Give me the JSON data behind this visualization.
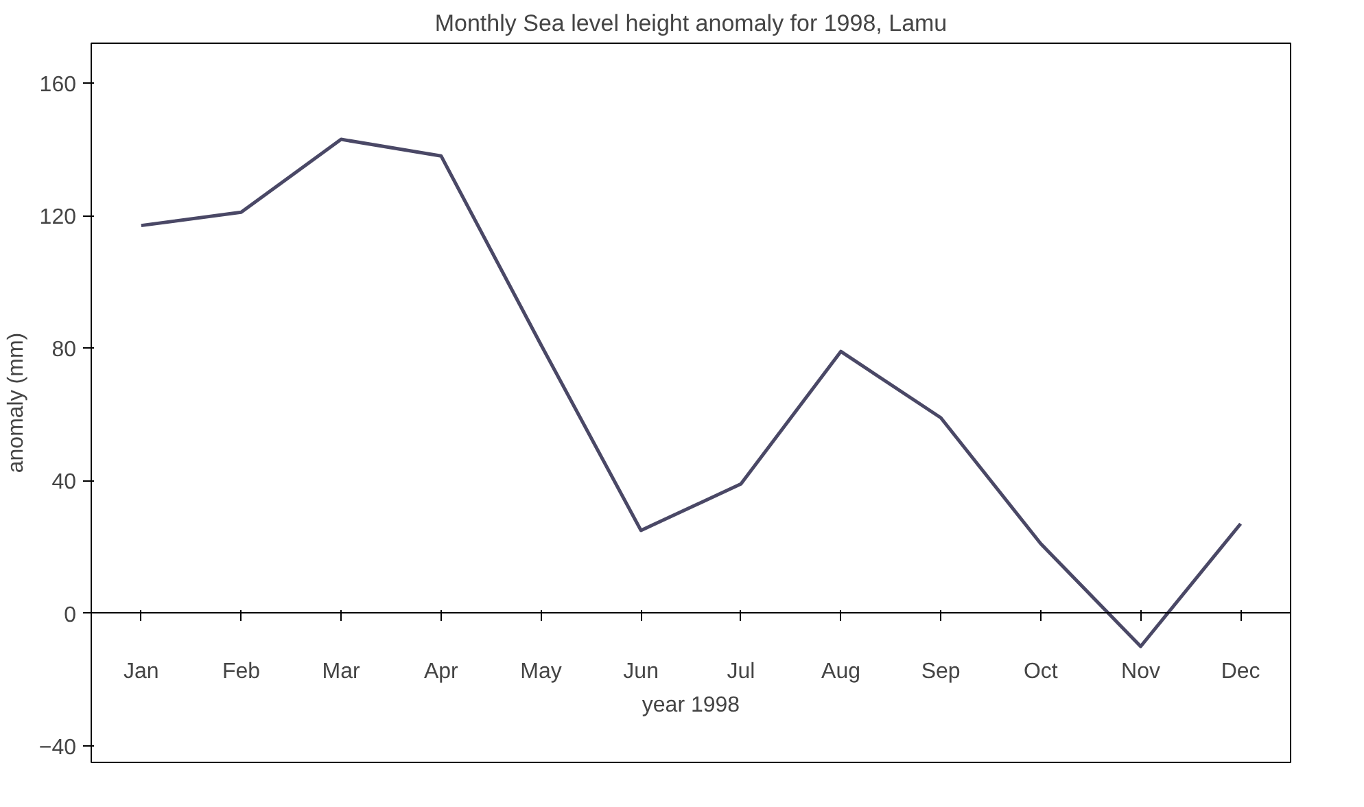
{
  "chart_data": {
    "type": "line",
    "title": "Monthly Sea level height anomaly for 1998, Lamu",
    "xlabel": "year 1998",
    "ylabel": "anomaly (mm)",
    "categories": [
      "Jan",
      "Feb",
      "Mar",
      "Apr",
      "May",
      "Jun",
      "Jul",
      "Aug",
      "Sep",
      "Oct",
      "Nov",
      "Dec"
    ],
    "series": [
      {
        "color": "#4a4866",
        "values": [
          117,
          121,
          143,
          138,
          81,
          25,
          39,
          79,
          59,
          21,
          -10,
          27
        ]
      }
    ],
    "ylim": [
      -45,
      172
    ],
    "yticks": [
      -40,
      0,
      40,
      80,
      120,
      160
    ],
    "grid": false,
    "marker": "none",
    "line_style": "solid"
  }
}
